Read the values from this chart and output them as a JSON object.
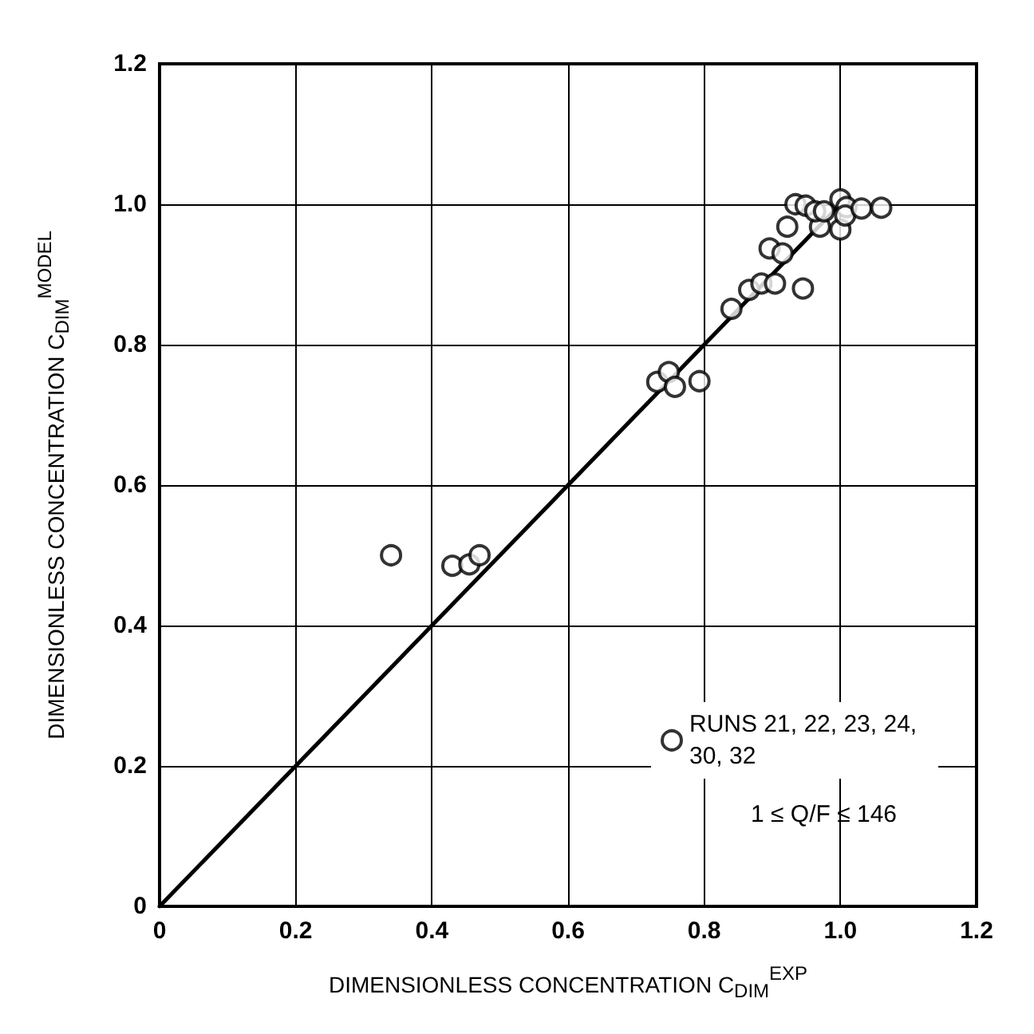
{
  "chart_data": {
    "type": "scatter",
    "xlabel": "DIMENSIONLESS CONCENTRATION C$_{DIM}$$^{EXP}$",
    "ylabel": "DIMENSIONLESS CONCENTRATION C$_{DIM}$$^{MODEL}$",
    "xlim": [
      0,
      1.2
    ],
    "ylim": [
      0,
      1.2
    ],
    "xticks": [
      0,
      0.2,
      0.4,
      0.6,
      0.8,
      {
        "value": 1,
        "label": "1.0"
      },
      1.2
    ],
    "yticks": [
      0,
      0.2,
      0.4,
      0.6,
      0.8,
      {
        "value": 1,
        "label": "1.0"
      },
      1.2
    ],
    "grid": true,
    "legend": "bottom right",
    "marker": "circle",
    "annotations": [
      "1 ≤ Q/F ≤ 146"
    ],
    "series": [
      {
        "name": "RUNS 21, 22, 23, 24, 30, 32",
        "color": "#000000",
        "x": [
          0.34,
          0.43,
          0.455,
          0.47,
          0.731,
          0.748,
          0.757,
          0.793,
          0.84,
          0.866,
          0.884,
          0.904,
          0.945,
          0.896,
          0.915,
          0.922,
          0.97,
          1.0,
          0.934,
          0.949,
          0.963,
          0.976,
          1.0,
          1.009,
          1.007,
          1.031,
          1.06
        ],
        "values": [
          0.5,
          0.485,
          0.487,
          0.5,
          0.747,
          0.761,
          0.74,
          0.748,
          0.851,
          0.878,
          0.887,
          0.887,
          0.88,
          0.937,
          0.93,
          0.968,
          0.968,
          0.964,
          1.0,
          0.998,
          0.99,
          0.99,
          1.007,
          0.996,
          0.984,
          0.994,
          0.995
        ]
      },
      {
        "type": "line",
        "color": "#000000",
        "marker": "none",
        "line_style": "solid",
        "x": [
          0,
          1.0
        ],
        "values": [
          0,
          1.0
        ]
      }
    ]
  }
}
